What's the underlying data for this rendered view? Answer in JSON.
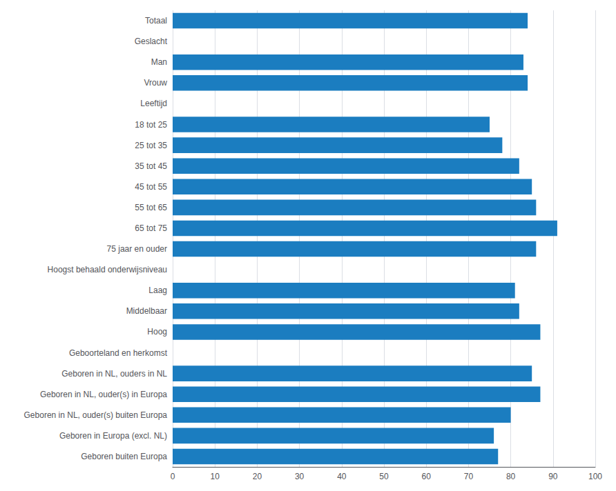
{
  "chart_data": {
    "type": "bar",
    "orientation": "horizontal",
    "categories": [
      "Totaal",
      "Geslacht",
      "Man",
      "Vrouw",
      "Leeftijd",
      "18 tot 25",
      "25 tot 35",
      "35 tot 45",
      "45 tot 55",
      "55 tot 65",
      "65 tot 75",
      "75 jaar en ouder",
      "Hoogst behaald onderwijsniveau",
      "Laag",
      "Middelbaar",
      "Hoog",
      "Geboorteland en herkomst",
      "Geboren in NL, ouders in NL",
      "Geboren in NL, ouder(s) in Europa",
      "Geboren in NL, ouder(s) buiten Europa",
      "Geboren in Europa (excl. NL)",
      "Geboren buiten Europa"
    ],
    "values": [
      84,
      null,
      83,
      84,
      null,
      75,
      78,
      82,
      85,
      86,
      91,
      86,
      null,
      81,
      82,
      87,
      null,
      85,
      87,
      80,
      76,
      77
    ],
    "color": "#1b7dc0",
    "xlim": [
      0,
      100
    ],
    "xticks": [
      0,
      10,
      20,
      30,
      40,
      50,
      60,
      70,
      80,
      90,
      100
    ],
    "grid": true
  }
}
